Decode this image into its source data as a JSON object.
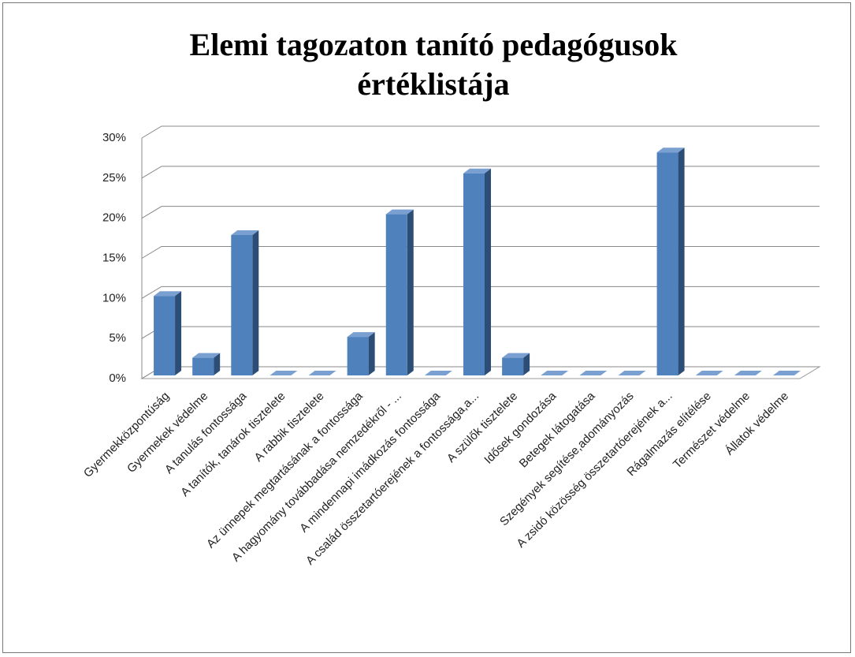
{
  "chart_data": {
    "type": "bar3d",
    "title": "Elemi tagozaton tanító pedagógusok értéklistája",
    "categories": [
      "Gyermekközpontúság",
      "Gyermekek védelme",
      "A tanulás fontossága",
      "A tanítók, tanárok tisztelete",
      "A rabbik tisztelete",
      "Az ünnepek megtartásának a fontossága",
      "A hagyomány továbbadása nemzedékről - ...",
      "A mindennapi imádkozás fontossága",
      "A család összetartóerejének a fontossága,a...",
      "A szülők tisztelete",
      "Idősek gondozása",
      "Betegek látogatása",
      "Szegények segítése,adományozás",
      "A zsidó közösség összetartóerejének a...",
      "Rágalmazás elítélése",
      "Természet védelme",
      "Állatok védelme"
    ],
    "values": [
      10.3,
      2.6,
      17.9,
      0,
      0,
      5.2,
      20.5,
      0,
      25.6,
      2.6,
      0,
      0,
      0,
      28.2,
      0,
      0,
      0
    ],
    "color": "#4f81bd",
    "ylim": [
      0,
      30
    ],
    "yticks": [
      {
        "value": 0,
        "label": "0%"
      },
      {
        "value": 5,
        "label": "5%"
      },
      {
        "value": 10,
        "label": "10%"
      },
      {
        "value": 15,
        "label": "15%"
      },
      {
        "value": 20,
        "label": "20%"
      },
      {
        "value": 25,
        "label": "25%"
      },
      {
        "value": 30,
        "label": "30%"
      }
    ],
    "grid": true
  }
}
